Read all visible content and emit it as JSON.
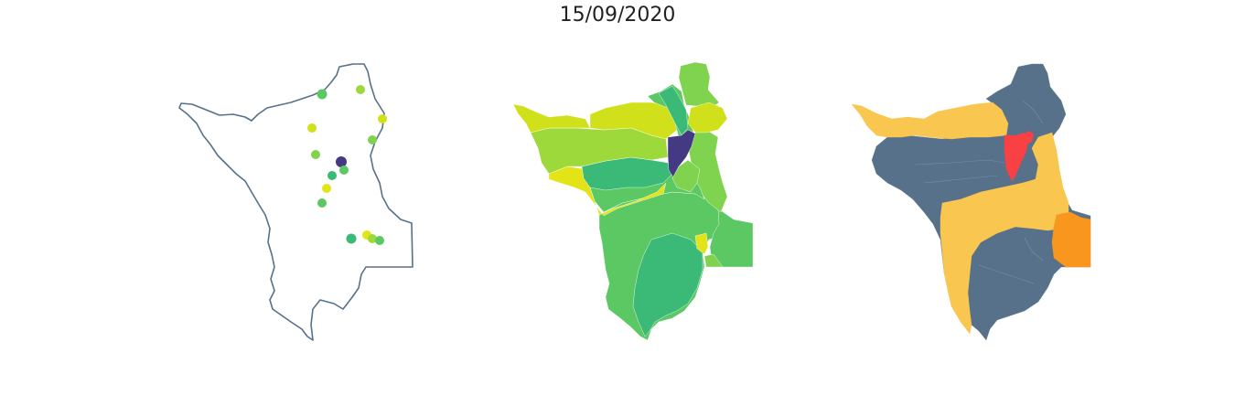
{
  "title": "15/09/2020",
  "colors": {
    "outline": "#567189",
    "v_deep_purple": "#443983",
    "v_green_dark": "#3aba76",
    "v_green": "#5cc863",
    "v_green_light": "#7fd34e",
    "v_lime": "#9dd93b",
    "v_yellow_green": "#d0e11c",
    "v_yellow": "#e3e418",
    "cat_slate": "#567189",
    "cat_gold": "#f9c650",
    "cat_orange": "#f8961e",
    "cat_red": "#f94144"
  },
  "panels": [
    {
      "id": "stations-points",
      "kind": "point-map",
      "point_count": 16
    },
    {
      "id": "choropleth-continuous",
      "kind": "choropleth",
      "palette": "viridis"
    },
    {
      "id": "choropleth-categorical",
      "kind": "choropleth",
      "palette": "slate-gold-orange-red"
    }
  ]
}
